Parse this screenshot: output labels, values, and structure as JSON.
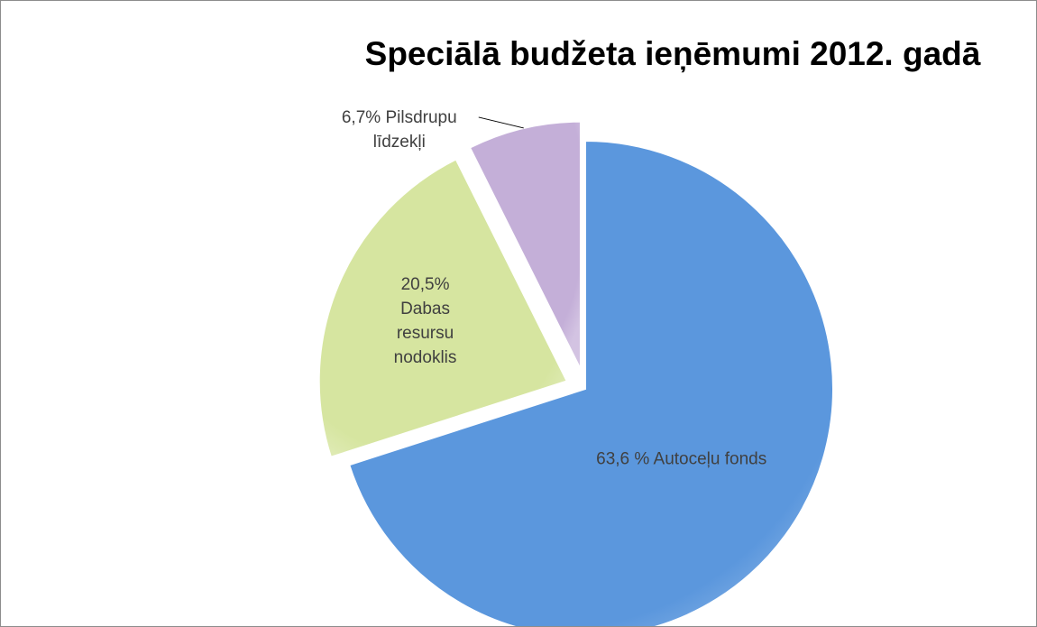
{
  "chart_data": {
    "type": "pie",
    "title": "Speciālā budžeta ieņēmumi 2012. gadā",
    "categories": [
      "Autoceļu fonds",
      "Dabas resursu nodoklis",
      "Pilsdrupu līdzekļi"
    ],
    "values": [
      63.6,
      20.5,
      6.7
    ],
    "value_labels": [
      "63,6 %",
      "20,5%",
      "6,7%"
    ],
    "colors": [
      "#5b97dd",
      "#d6e5a0",
      "#c4afd8"
    ]
  }
}
